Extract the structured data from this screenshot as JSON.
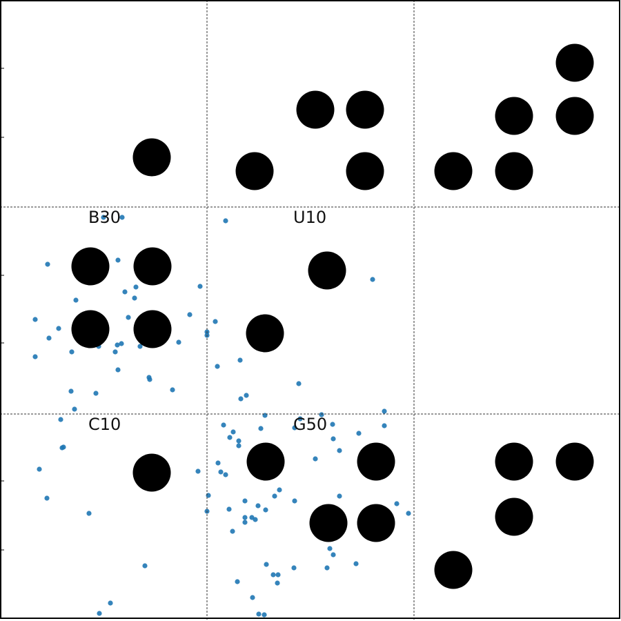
{
  "grid": {
    "rows": 3,
    "cols": 3
  },
  "colors": {
    "disc": "#000000",
    "scatter": "#1f77b4",
    "grid_line": "#333333",
    "frame": "#000000",
    "background": "#ffffff"
  },
  "cells": [
    {
      "label": "",
      "discs": 1,
      "points": 0
    },
    {
      "label": "",
      "discs": 4,
      "points": 0
    },
    {
      "label": "",
      "discs": 5,
      "points": 0
    },
    {
      "label": "B30",
      "discs": 4,
      "points": 30
    },
    {
      "label": "U10",
      "discs": 2,
      "points": 10
    },
    {
      "label": "",
      "discs": 0,
      "points": 0
    },
    {
      "label": "C10",
      "discs": 1,
      "points": 10
    },
    {
      "label": "G50",
      "discs": 4,
      "points": 50
    },
    {
      "label": "",
      "discs": 4,
      "points": 0
    }
  ]
}
